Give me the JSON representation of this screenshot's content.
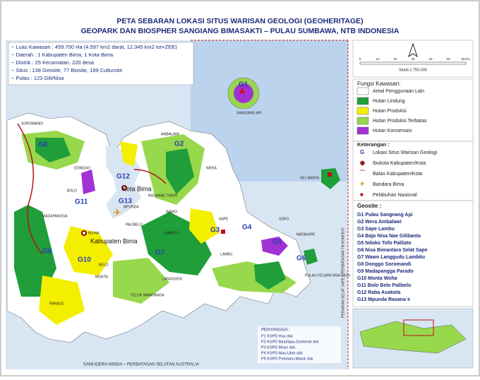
{
  "title": [
    "PETA SEBARAN LOKASI SITUS WARISAN GEOLOGI (GEOHERITAGE)",
    "GEOPARK DAN BIOSPHER SANGIANG BIMASAKTI – PULAU SUMBAWA, NTB INDONESIA"
  ],
  "info": [
    "~ Luas Kawasan : 459.700 Ha (4.597 km2 darat, 12.345 km2 tot+ZEE)",
    "~ Daerah : 1 Kabupaten Bima, 1 Kota Bima",
    "~ Distrik : 25 Kecamatan, 220 desa",
    "~ Situs : 138 Geosite, 77 Biosite, 199 Cultursite",
    "~ Pulau : 123 Gili/Nisa"
  ],
  "scale": {
    "label": "Skala 1:750.000",
    "ticks": [
      "0",
      "10",
      "20",
      "30",
      "40",
      "50",
      "60 km"
    ]
  },
  "fungsi": {
    "title": "Fungsi Kawasan:",
    "items": [
      {
        "label": "Areal Penggunaan Lain",
        "color": "#ffffff"
      },
      {
        "label": "Hutan Lindung",
        "color": "#1f9e3a"
      },
      {
        "label": "Hutan Produksi",
        "color": "#f4ee00"
      },
      {
        "label": "Hutan Produksi Terbatas",
        "color": "#98d84c"
      },
      {
        "label": "Hutan Konservasi",
        "color": "#a132d4"
      }
    ]
  },
  "keterangan": {
    "title": "Keterangan :",
    "items": [
      "Lokasi Situs Warisan Geologi",
      "Ibukota Kabupaten/Kota",
      "Batas Kabupaten/Kota",
      "Bandara Bima",
      "Pelabuhan Nasional"
    ]
  },
  "geosite": {
    "title": "Geosite :",
    "items": [
      "G1 Pulau Sangeang Api",
      "G2 Wera Ambalawi",
      "G3 Sape Lambu",
      "G4 Bajo Nisa Nae Gilibanta",
      "G5 Ndoko Tofo Palilato",
      "G6 Nisa Bimantara Selat Sape",
      "G7 Wawo Langgudu Lambitu",
      "G8 Donggo Soromandi",
      "G9 Madapangga Parado",
      "G10 Monta Woha",
      "G11 Bolo Belo Palibelo",
      "G12 Raba Asakota",
      "G13 Mpunda Rasana`e"
    ]
  },
  "penyangga": {
    "title": "PENYANGGA :",
    "items": [
      "P1  KSPD Huu dsk",
      "P2  KSPD Batuhijau-Dodorinti dsk",
      "P3  KSPD Moyo dsk",
      "P4  KSPD Alas-Utan dsk",
      "P5  KSPD Pototano-Maluk dsk"
    ]
  },
  "places": [
    "SANGIANG API",
    "SOROMANDI",
    "AMBALAWI",
    "WERA",
    "DONGGO",
    "BOLO",
    "Kota Bima",
    "GILI BANTA",
    "MADAPANGGA",
    "WOHA",
    "Kabupaten Bima",
    "PALIBELO",
    "SAPE",
    "LAMBU",
    "WAWO",
    "LAMBITU",
    "MONTA",
    "PARADO",
    "LANGGUDU",
    "BELO",
    "TELUK WAWORADA",
    "SOKO",
    "MATAKAPE",
    "PULAU KELAPA NISA BAJO",
    "MPUNDA",
    "RASANAE TIMUR"
  ],
  "geosites": [
    "G1",
    "G2",
    "G3",
    "G4",
    "G5",
    "G6",
    "G7",
    "G8",
    "G9",
    "G10",
    "G11",
    "G12",
    "G13"
  ],
  "footer": "SAMUDERA HINDIA – PERBATASAN SELATAN AUSTRALIA",
  "side": "PERAIRAN SELAT SAPE – PERBATASAN TN KOMODO"
}
